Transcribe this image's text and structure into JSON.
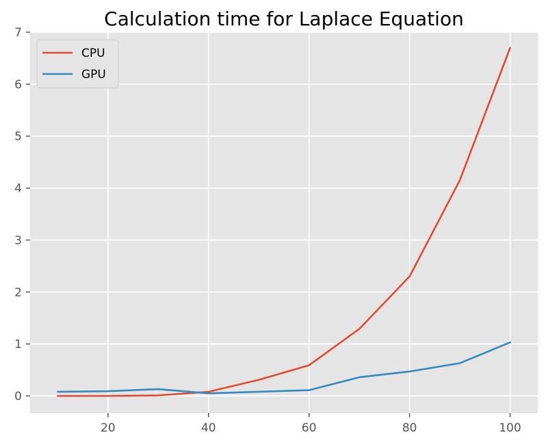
{
  "chart_data": {
    "type": "line",
    "title": "Calculation time for Laplace Equation",
    "xlabel": "",
    "ylabel": "",
    "x": [
      10,
      20,
      30,
      40,
      50,
      60,
      70,
      80,
      90,
      100
    ],
    "xlim": [
      4.5,
      105.5
    ],
    "ylim": [
      -0.33,
      7.0
    ],
    "xticks": [
      20,
      40,
      60,
      80,
      100
    ],
    "yticks": [
      0,
      1,
      2,
      3,
      4,
      5,
      6,
      7
    ],
    "grid": true,
    "legend_position": "top-left",
    "series": [
      {
        "name": "CPU",
        "color": "#E24A33",
        "values": [
          0.0,
          0.0,
          0.01,
          0.08,
          0.31,
          0.59,
          1.29,
          2.3,
          4.15,
          6.7
        ]
      },
      {
        "name": "GPU",
        "color": "#348ABD",
        "values": [
          0.08,
          0.09,
          0.13,
          0.05,
          0.08,
          0.11,
          0.36,
          0.47,
          0.63,
          1.03
        ]
      }
    ]
  },
  "style": {
    "plot_background": "#E5E5E5",
    "grid_color": "#FFFFFF",
    "tick_color": "#555555"
  }
}
